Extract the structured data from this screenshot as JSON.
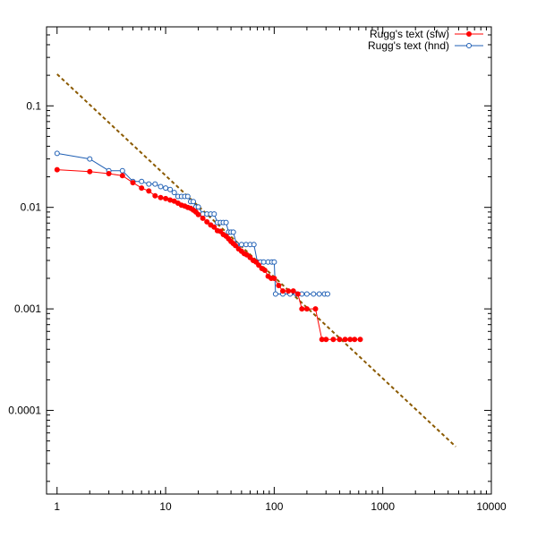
{
  "chart_data": {
    "type": "scatter",
    "title": "",
    "xlabel": "",
    "ylabel": "",
    "x_scale": "log",
    "y_scale": "log",
    "xlim": [
      0.8,
      10000
    ],
    "ylim": [
      1.5e-05,
      0.6
    ],
    "x_ticks": [
      1,
      10,
      100,
      1000,
      10000
    ],
    "x_tick_labels": [
      "1",
      "10",
      "100",
      "1000",
      "10000"
    ],
    "y_ticks": [
      0.0001,
      0.001,
      0.01,
      0.1
    ],
    "y_tick_labels": [
      "0.0001",
      "0.001",
      "0.01",
      "0.1"
    ],
    "grid": false,
    "legend_position": "top-right",
    "series": [
      {
        "name": "Rugg's text (sfw)",
        "color": "#ff0000",
        "marker": "filled-circle",
        "points": [
          [
            1,
            0.0235
          ],
          [
            2,
            0.0225
          ],
          [
            3,
            0.0215
          ],
          [
            4,
            0.0205
          ],
          [
            5,
            0.0175
          ],
          [
            6,
            0.0155
          ],
          [
            7,
            0.0145
          ],
          [
            8,
            0.013
          ],
          [
            9,
            0.0125
          ],
          [
            10,
            0.0122
          ],
          [
            11,
            0.0118
          ],
          [
            12,
            0.0115
          ],
          [
            13,
            0.011
          ],
          [
            14,
            0.0105
          ],
          [
            15,
            0.0103
          ],
          [
            16,
            0.01
          ],
          [
            17,
            0.0098
          ],
          [
            18,
            0.0094
          ],
          [
            19,
            0.009
          ],
          [
            20,
            0.0085
          ],
          [
            22,
            0.0078
          ],
          [
            24,
            0.0072
          ],
          [
            26,
            0.0067
          ],
          [
            28,
            0.0064
          ],
          [
            30,
            0.0059
          ],
          [
            32,
            0.0058
          ],
          [
            34,
            0.0054
          ],
          [
            36,
            0.0052
          ],
          [
            38,
            0.0049
          ],
          [
            40,
            0.0046
          ],
          [
            42,
            0.0044
          ],
          [
            44,
            0.0042
          ],
          [
            47,
            0.0039
          ],
          [
            50,
            0.0037
          ],
          [
            53,
            0.0035
          ],
          [
            56,
            0.0034
          ],
          [
            60,
            0.0032
          ],
          [
            64,
            0.003
          ],
          [
            68,
            0.0029
          ],
          [
            72,
            0.0027
          ],
          [
            77,
            0.0025
          ],
          [
            82,
            0.0024
          ],
          [
            88,
            0.0021
          ],
          [
            94,
            0.002
          ],
          [
            100,
            0.002
          ],
          [
            110,
            0.0017
          ],
          [
            120,
            0.0015
          ],
          [
            135,
            0.0015
          ],
          [
            150,
            0.0015
          ],
          [
            165,
            0.0014
          ],
          [
            180,
            0.001
          ],
          [
            200,
            0.001
          ],
          [
            240,
            0.001
          ],
          [
            275,
            0.0005
          ],
          [
            300,
            0.0005
          ],
          [
            350,
            0.0005
          ],
          [
            400,
            0.0005
          ],
          [
            450,
            0.0005
          ],
          [
            500,
            0.0005
          ],
          [
            550,
            0.0005
          ],
          [
            620,
            0.0005
          ]
        ]
      },
      {
        "name": "Rugg's text (hnd)",
        "color": "#1f5fb4",
        "marker": "open-circle",
        "points": [
          [
            1,
            0.034
          ],
          [
            2,
            0.03
          ],
          [
            3,
            0.023
          ],
          [
            4,
            0.023
          ],
          [
            5,
            0.018
          ],
          [
            6,
            0.018
          ],
          [
            7,
            0.017
          ],
          [
            8,
            0.017
          ],
          [
            9,
            0.016
          ],
          [
            10,
            0.0155
          ],
          [
            11,
            0.015
          ],
          [
            12,
            0.014
          ],
          [
            13,
            0.0128
          ],
          [
            14,
            0.0128
          ],
          [
            15,
            0.0128
          ],
          [
            16,
            0.0128
          ],
          [
            17,
            0.0114
          ],
          [
            18,
            0.0114
          ],
          [
            19,
            0.0101
          ],
          [
            20,
            0.0101
          ],
          [
            22,
            0.0086
          ],
          [
            24,
            0.0086
          ],
          [
            26,
            0.0086
          ],
          [
            28,
            0.0086
          ],
          [
            30,
            0.0071
          ],
          [
            32,
            0.0071
          ],
          [
            34,
            0.0071
          ],
          [
            36,
            0.0071
          ],
          [
            38,
            0.0057
          ],
          [
            40,
            0.0057
          ],
          [
            42,
            0.0057
          ],
          [
            45,
            0.0043
          ],
          [
            50,
            0.0043
          ],
          [
            55,
            0.0043
          ],
          [
            60,
            0.0043
          ],
          [
            65,
            0.0043
          ],
          [
            70,
            0.0029
          ],
          [
            75,
            0.0029
          ],
          [
            80,
            0.0029
          ],
          [
            88,
            0.0029
          ],
          [
            95,
            0.0029
          ],
          [
            100,
            0.0029
          ],
          [
            103,
            0.0014
          ],
          [
            120,
            0.0014
          ],
          [
            140,
            0.0014
          ],
          [
            160,
            0.0014
          ],
          [
            180,
            0.0014
          ],
          [
            200,
            0.0014
          ],
          [
            230,
            0.0014
          ],
          [
            260,
            0.0014
          ],
          [
            290,
            0.0014
          ],
          [
            310,
            0.0014
          ]
        ]
      },
      {
        "name": "",
        "color": "#8b5a00",
        "marker": "none",
        "line_style": "dashed",
        "points": [
          [
            1,
            0.205
          ],
          [
            4700,
            4.4e-05
          ]
        ]
      }
    ]
  }
}
